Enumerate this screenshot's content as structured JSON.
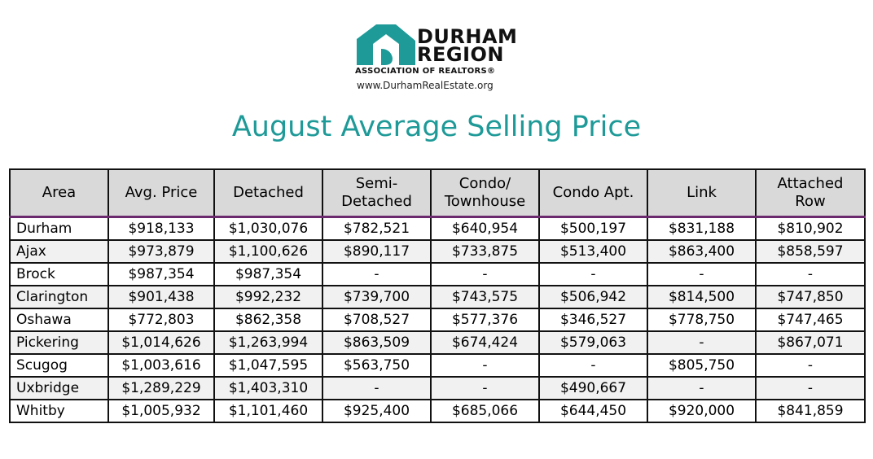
{
  "logo": {
    "line1": "DURHAM",
    "line2": "REGION",
    "association": "ASSOCIATION OF REALTORS®",
    "url": "www.DurhamRealEstate.org",
    "brand_color": "#1e9a98"
  },
  "title": "August Average Selling Price",
  "table": {
    "headers": [
      "Area",
      "Avg. Price",
      "Detached",
      "Semi-\nDetached",
      "Condo/\nTownhouse",
      "Condo Apt.",
      "Link",
      "Attached\nRow"
    ],
    "rows": [
      [
        "Durham",
        "$918,133",
        "$1,030,076",
        "$782,521",
        "$640,954",
        "$500,197",
        "$831,188",
        "$810,902"
      ],
      [
        "Ajax",
        "$973,879",
        "$1,100,626",
        "$890,117",
        "$733,875",
        "$513,400",
        "$863,400",
        "$858,597"
      ],
      [
        "Brock",
        "$987,354",
        "$987,354",
        "-",
        "-",
        "-",
        "-",
        "-"
      ],
      [
        "Clarington",
        "$901,438",
        "$992,232",
        "$739,700",
        "$743,575",
        "$506,942",
        "$814,500",
        "$747,850"
      ],
      [
        "Oshawa",
        "$772,803",
        "$862,358",
        "$708,527",
        "$577,376",
        "$346,527",
        "$778,750",
        "$747,465"
      ],
      [
        "Pickering",
        "$1,014,626",
        "$1,263,994",
        "$863,509",
        "$674,424",
        "$579,063",
        "-",
        "$867,071"
      ],
      [
        "Scugog",
        "$1,003,616",
        "$1,047,595",
        "$563,750",
        "-",
        "-",
        "$805,750",
        "-"
      ],
      [
        "Uxbridge",
        "$1,289,229",
        "$1,403,310",
        "-",
        "-",
        "$490,667",
        "-",
        "-"
      ],
      [
        "Whitby",
        "$1,005,932",
        "$1,101,460",
        "$925,400",
        "$685,066",
        "$644,450",
        "$920,000",
        "$841,859"
      ]
    ]
  }
}
